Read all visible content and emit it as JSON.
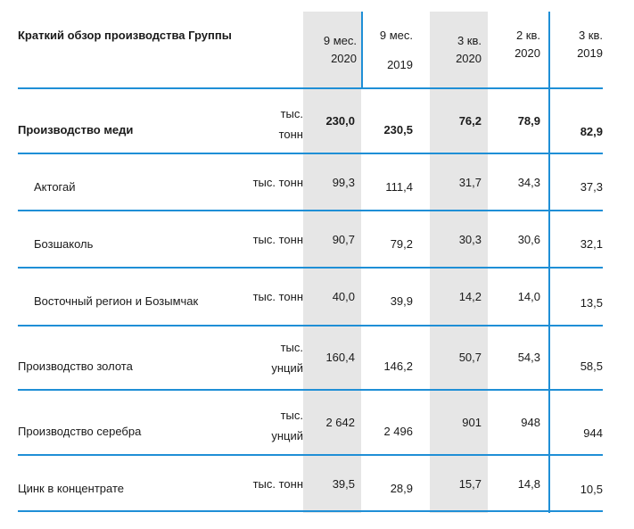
{
  "table": {
    "title": "Краткий обзор производства Группы",
    "headers": [
      {
        "line1": "9 мес.",
        "line2": "2020"
      },
      {
        "line1": "9 мес.",
        "line2": "2019"
      },
      {
        "line1": "3 кв.",
        "line2": "2020"
      },
      {
        "line1": "2 кв.",
        "line2": "2020"
      },
      {
        "line1": "3 кв.",
        "line2": "2019"
      }
    ],
    "rows": [
      {
        "label": "Производство меди",
        "unit1": "тыс.",
        "unit2": "тонн",
        "values": [
          "230,0",
          "230,5",
          "76,2",
          "78,9",
          "82,9"
        ]
      },
      {
        "label": "Актогай",
        "unit": "тыс. тонн",
        "values": [
          "99,3",
          "111,4",
          "31,7",
          "34,3",
          "37,3"
        ]
      },
      {
        "label": "Бозшаколь",
        "unit": "тыс. тонн",
        "values": [
          "90,7",
          "79,2",
          "30,3",
          "30,6",
          "32,1"
        ]
      },
      {
        "label": "Восточный регион и Бозымчак",
        "unit": "тыс. тонн",
        "values": [
          "40,0",
          "39,9",
          "14,2",
          "14,0",
          "13,5"
        ]
      },
      {
        "label": "Производство золота",
        "unit1": "тыс.",
        "unit2": "унций",
        "values": [
          "160,4",
          "146,2",
          "50,7",
          "54,3",
          "58,5"
        ]
      },
      {
        "label": "Производство серебра",
        "unit1": "тыс.",
        "unit2": "унций",
        "values": [
          "2 642",
          "2 496",
          "901",
          "948",
          "944"
        ]
      },
      {
        "label": "Цинк в концентрате",
        "unit": "тыс. тонн",
        "values": [
          "39,5",
          "28,9",
          "15,7",
          "14,8",
          "10,5"
        ]
      }
    ]
  }
}
